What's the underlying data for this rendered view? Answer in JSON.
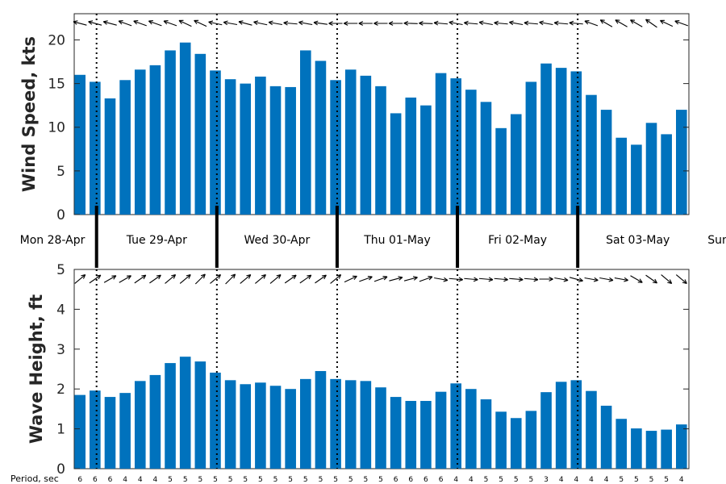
{
  "chart_data": [
    {
      "type": "bar",
      "name": "wind",
      "ylabel": "Wind Speed, kts",
      "ylim": [
        0,
        23
      ],
      "yticks": [
        0,
        5,
        10,
        15,
        20
      ],
      "color": "#0072BD",
      "values": [
        16.0,
        15.2,
        13.3,
        15.4,
        16.6,
        17.1,
        18.8,
        19.7,
        18.4,
        16.5,
        15.5,
        15.0,
        15.8,
        14.7,
        14.6,
        18.8,
        17.6,
        15.4,
        16.6,
        15.9,
        14.7,
        11.6,
        13.4,
        12.5,
        16.2,
        15.6,
        14.3,
        12.9,
        9.9,
        11.5,
        15.2,
        17.3,
        16.8,
        16.4,
        13.7,
        12.0,
        8.8,
        8.0,
        10.5,
        9.2,
        12.0
      ],
      "direction_deg": [
        -165,
        -165,
        -165,
        -160,
        -160,
        -160,
        -160,
        -155,
        -155,
        -168,
        -170,
        -165,
        -168,
        -170,
        -175,
        -170,
        -172,
        -180,
        -180,
        -180,
        -180,
        -180,
        -178,
        -178,
        -175,
        -170,
        -175,
        -170,
        -175,
        -170,
        -175,
        -170,
        -175,
        -175,
        -160,
        -150,
        -150,
        -150,
        -145,
        -155,
        -160
      ]
    },
    {
      "type": "bar",
      "name": "wave",
      "ylabel": "Wave Height, ft",
      "ylim": [
        0,
        5
      ],
      "yticks": [
        0,
        1,
        2,
        3,
        4,
        5
      ],
      "color": "#0072BD",
      "values": [
        1.85,
        1.96,
        1.8,
        1.9,
        2.2,
        2.35,
        2.65,
        2.81,
        2.69,
        2.41,
        2.22,
        2.12,
        2.16,
        2.08,
        2.0,
        2.25,
        2.45,
        2.25,
        2.22,
        2.2,
        2.04,
        1.8,
        1.7,
        1.7,
        1.93,
        2.14,
        2.0,
        1.74,
        1.43,
        1.27,
        1.45,
        1.92,
        2.18,
        2.22,
        1.95,
        1.58,
        1.25,
        1.01,
        0.95,
        0.98,
        1.11
      ],
      "direction_deg": [
        -40,
        -35,
        -30,
        -30,
        -35,
        -35,
        -40,
        -40,
        -45,
        -40,
        -45,
        -40,
        -40,
        -40,
        -35,
        -35,
        -35,
        -40,
        -25,
        -20,
        -20,
        -15,
        -15,
        -20,
        10,
        5,
        5,
        5,
        5,
        5,
        5,
        0,
        10,
        15,
        10,
        10,
        10,
        30,
        35,
        40,
        40
      ]
    }
  ],
  "days": [
    "Mon 28-Apr",
    "Tue 29-Apr",
    "Wed 30-Apr",
    "Thu 01-May",
    "Fri 02-May",
    "Sat 03-May",
    "Sun"
  ],
  "period": {
    "title": "Period, sec",
    "values": [
      "6",
      "6",
      "6",
      "4",
      "4",
      "4",
      "5",
      "5",
      "5",
      "5",
      "5",
      "5",
      "5",
      "5",
      "5",
      "5",
      "5",
      "5",
      "5",
      "5",
      "5",
      "6",
      "6",
      "6",
      "6",
      "4",
      "4",
      "5",
      "5",
      "5",
      "5",
      "3",
      "4",
      "4",
      "4",
      "4",
      "5",
      "5",
      "5",
      "5",
      "4"
    ]
  }
}
